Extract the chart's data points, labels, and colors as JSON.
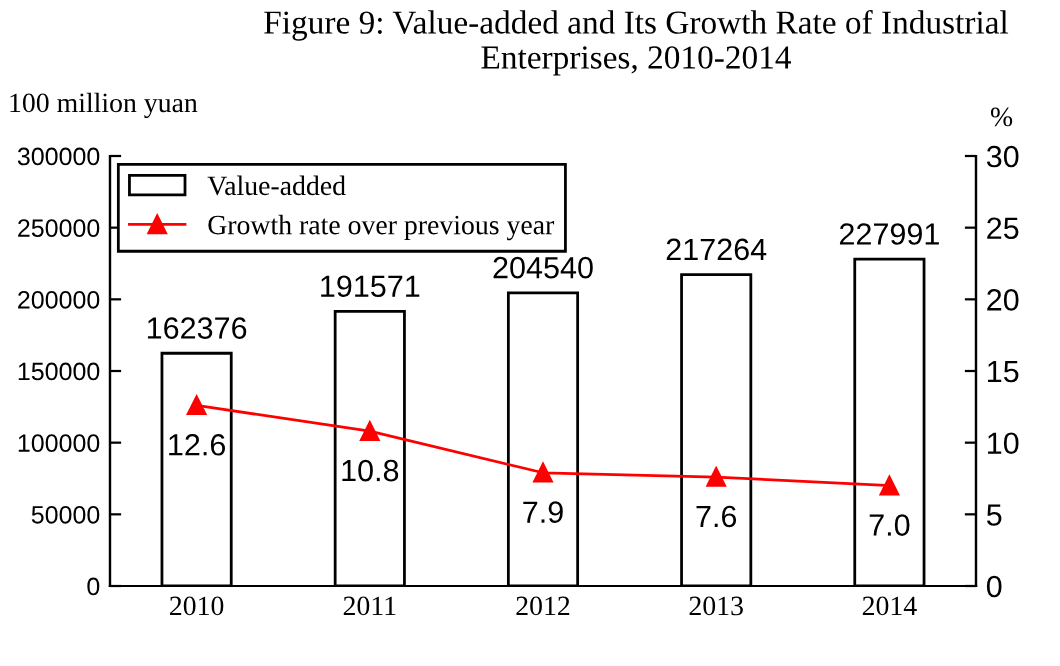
{
  "chart_data": {
    "type": "bar",
    "title": "Figure 9: Value-added and Its Growth Rate of Industrial Enterprises, 2010-2014",
    "ylabel": "100 million yuan",
    "y2label": "%",
    "categories": [
      "2010",
      "2011",
      "2012",
      "2013",
      "2014"
    ],
    "series": [
      {
        "name": "Value-added",
        "color": "#ffffff",
        "values": [
          162376,
          191571,
          204540,
          217264,
          227991
        ]
      },
      {
        "name": "Growth rate over previous year",
        "type": "line",
        "axis": "y2",
        "color": "#ff0000",
        "marker": "triangle",
        "values": [
          12.6,
          10.8,
          7.9,
          7.6,
          7.0
        ],
        "value_labels": [
          "12.6",
          "10.8",
          "7.9",
          "7.6",
          "7.0"
        ]
      }
    ],
    "data_labels": true,
    "legend": "top left",
    "ylim": [
      0,
      300000
    ],
    "yticks": [
      0,
      50000,
      100000,
      150000,
      200000,
      250000,
      300000
    ],
    "y2lim": [
      0,
      30
    ],
    "y2ticks": [
      0,
      5,
      10,
      15,
      20,
      25,
      30
    ]
  }
}
